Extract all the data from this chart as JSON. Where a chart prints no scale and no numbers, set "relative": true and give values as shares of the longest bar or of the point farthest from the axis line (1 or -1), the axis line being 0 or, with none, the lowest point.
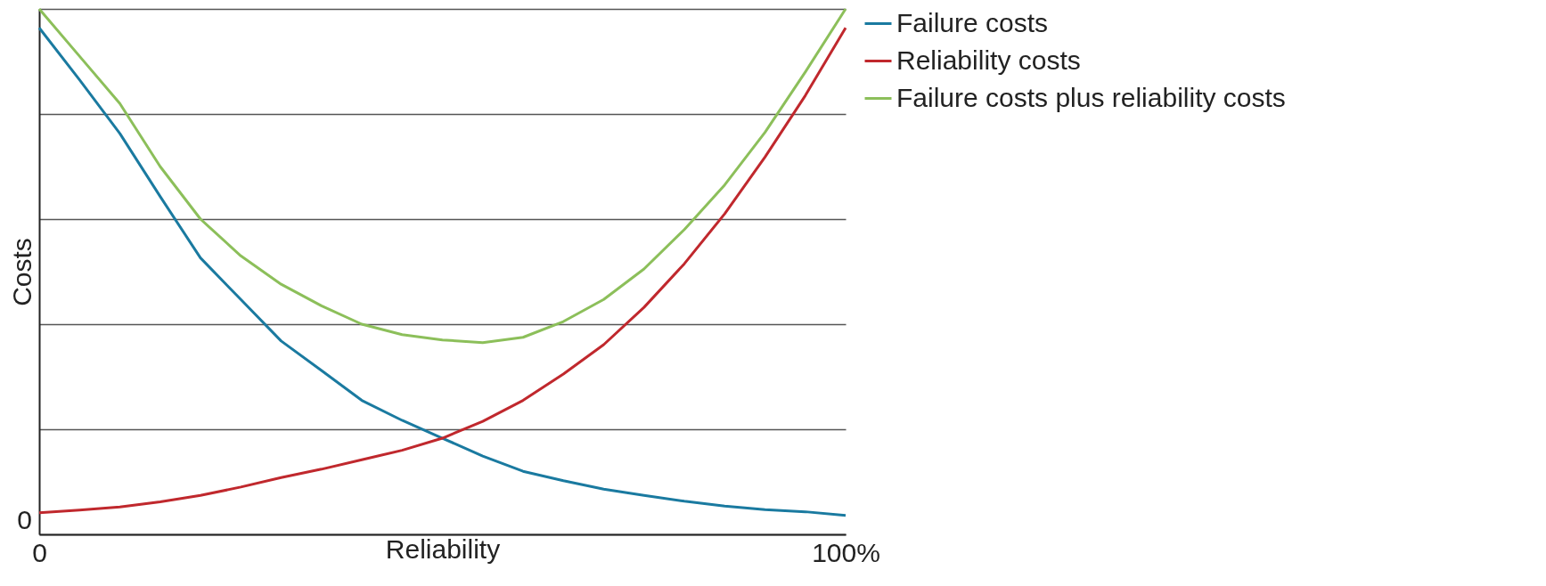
{
  "chart_data": {
    "type": "line",
    "relative": true,
    "xlabel": "Reliability",
    "ylabel": "Costs",
    "x": [
      0,
      5,
      10,
      15,
      20,
      25,
      30,
      35,
      40,
      45,
      50,
      55,
      60,
      65,
      70,
      75,
      80,
      85,
      90,
      95,
      100
    ],
    "xlim": [
      0,
      100
    ],
    "xticks": [
      {
        "value": 0,
        "label": "0"
      },
      {
        "value": 100,
        "label": "100%"
      }
    ],
    "annotations": [
      "0"
    ],
    "grid": "y",
    "legend": "right",
    "series": [
      {
        "name": "Failure costs",
        "color": "#1a7aa0",
        "values": [
          0.964,
          0.865,
          0.763,
          0.643,
          0.526,
          0.447,
          0.368,
          0.312,
          0.255,
          0.217,
          0.183,
          0.149,
          0.12,
          0.102,
          0.086,
          0.074,
          0.063,
          0.054,
          0.047,
          0.043,
          0.036
        ]
      },
      {
        "name": "Reliability costs",
        "color": "#c0282d",
        "values": [
          0.041,
          0.046,
          0.052,
          0.062,
          0.074,
          0.09,
          0.108,
          0.124,
          0.142,
          0.16,
          0.183,
          0.215,
          0.255,
          0.305,
          0.361,
          0.432,
          0.515,
          0.61,
          0.718,
          0.835,
          0.964
        ]
      },
      {
        "name": "Failure costs plus reliability costs",
        "color": "#8cbf5a",
        "values": [
          1.0,
          0.91,
          0.82,
          0.7,
          0.6,
          0.53,
          0.476,
          0.435,
          0.4,
          0.38,
          0.37,
          0.365,
          0.375,
          0.405,
          0.447,
          0.505,
          0.58,
          0.665,
          0.765,
          0.88,
          1.0
        ]
      }
    ]
  }
}
